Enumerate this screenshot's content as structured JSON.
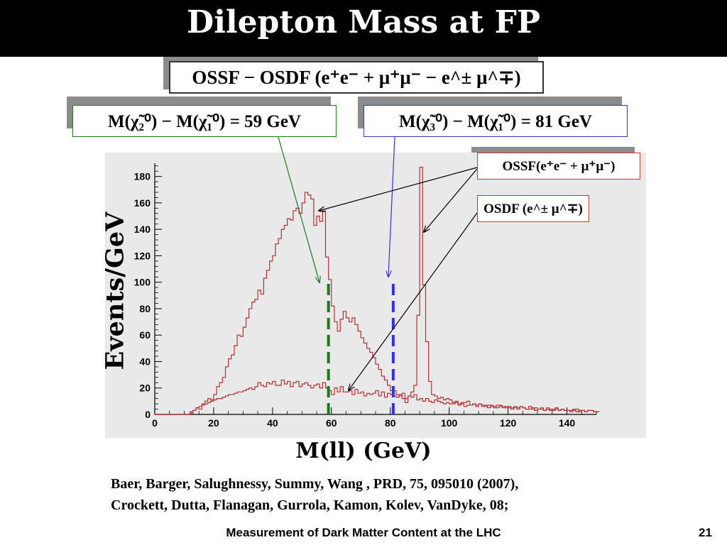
{
  "title": "Dilepton Mass at FP",
  "annotations": {
    "ossf_minus_osdf": "OSSF − OSDF (e⁺e⁻ + μ⁺μ⁻ − e^± μ^∓)",
    "chi2_diff": "M(χ̃₂⁰) − M(χ̃₁⁰) = 59 GeV",
    "chi3_diff": "M(χ̃₃⁰) − M(χ̃₁⁰) = 81 GeV",
    "ossf": "OSSF(e⁺e⁻ + μ⁺μ⁻)",
    "osdf": "OSDF (e^± μ^∓)"
  },
  "colors": {
    "histogram": "#b03030",
    "green_line": "#1a7a1a",
    "blue_line": "#3333dd",
    "arrow_black": "#000000",
    "arrow_green": "#1a7a1a",
    "arrow_blue": "#3333cc"
  },
  "chart_data": {
    "type": "line",
    "xlabel": "M(ll) (GeV)",
    "ylabel": "Events/GeV",
    "xlim": [
      0,
      150
    ],
    "ylim": [
      0,
      190
    ],
    "xticks": [
      0,
      20,
      40,
      60,
      80,
      100,
      120,
      140
    ],
    "yticks": [
      0,
      20,
      40,
      60,
      80,
      100,
      120,
      140,
      160,
      180
    ],
    "step": 1,
    "series": [
      {
        "name": "OSSF",
        "values": [
          0,
          0,
          0,
          0,
          0,
          0,
          0,
          0,
          0,
          0,
          0,
          0,
          1,
          3,
          5,
          4,
          8,
          10,
          12,
          11,
          15,
          21,
          24,
          28,
          36,
          42,
          45,
          52,
          60,
          59,
          66,
          73,
          80,
          85,
          87,
          94,
          91,
          103,
          109,
          116,
          120,
          129,
          133,
          140,
          143,
          148,
          147,
          154,
          156,
          152,
          160,
          168,
          166,
          163,
          143,
          150,
          146,
          154,
          119,
          102,
          82,
          70,
          63,
          72,
          78,
          73,
          70,
          73,
          68,
          63,
          58,
          54,
          50,
          47,
          43,
          38,
          34,
          29,
          26,
          22,
          18,
          14,
          13,
          15,
          12,
          9,
          14,
          17,
          22,
          75,
          187,
          98,
          55,
          25,
          15,
          14,
          12,
          13,
          11,
          12,
          11,
          9,
          10,
          8,
          9,
          9,
          10,
          7,
          8,
          7,
          8,
          7,
          6,
          7,
          6,
          5,
          7,
          6,
          5,
          6,
          5,
          4,
          6,
          5,
          6,
          5,
          4,
          4,
          5,
          3,
          4,
          5,
          3,
          4,
          3,
          4,
          5,
          3,
          4,
          3,
          3,
          2,
          3,
          4,
          2,
          3,
          2,
          3,
          3,
          2,
          2
        ]
      },
      {
        "name": "OSDF",
        "values": [
          0,
          0,
          0,
          0,
          0,
          0,
          0,
          0,
          0,
          0,
          0,
          0,
          2,
          3,
          5,
          6,
          7,
          8,
          9,
          10,
          11,
          12,
          12,
          13,
          14,
          15,
          15,
          16,
          17,
          17,
          18,
          19,
          20,
          19,
          21,
          24,
          22,
          21,
          24,
          23,
          25,
          22,
          22,
          26,
          23,
          25,
          21,
          24,
          25,
          21,
          23,
          24,
          22,
          20,
          22,
          23,
          20,
          24,
          20,
          18,
          15,
          20,
          17,
          21,
          17,
          17,
          18,
          15,
          19,
          16,
          17,
          14,
          16,
          15,
          16,
          18,
          14,
          17,
          13,
          16,
          15,
          18,
          15,
          14,
          16,
          12,
          14,
          13,
          15,
          11,
          12,
          10,
          12,
          10,
          9,
          11,
          10,
          9,
          8,
          9,
          8,
          8,
          9,
          7,
          8,
          6,
          7,
          7,
          8,
          6,
          8,
          6,
          7,
          5,
          7,
          6,
          5,
          7,
          6,
          5,
          6,
          5,
          5,
          4,
          6,
          5,
          4,
          6,
          4,
          5,
          4,
          4,
          3,
          5,
          4,
          3,
          4,
          3,
          4,
          3,
          3,
          3,
          4,
          2,
          3,
          3,
          2,
          3,
          3,
          2,
          2
        ]
      }
    ],
    "vertical_lines": [
      {
        "x": 59
      },
      {
        "x": 81
      }
    ]
  },
  "references": [
    "Baer, Barger, Salughnessy, Summy, Wang , PRD, 75, 095010 (2007),",
    "Crockett, Dutta, Flanagan, Gurrola, Kamon, Kolev, VanDyke, 08;"
  ],
  "footer": "Measurement of Dark Matter Content at the LHC",
  "page_number": "21"
}
